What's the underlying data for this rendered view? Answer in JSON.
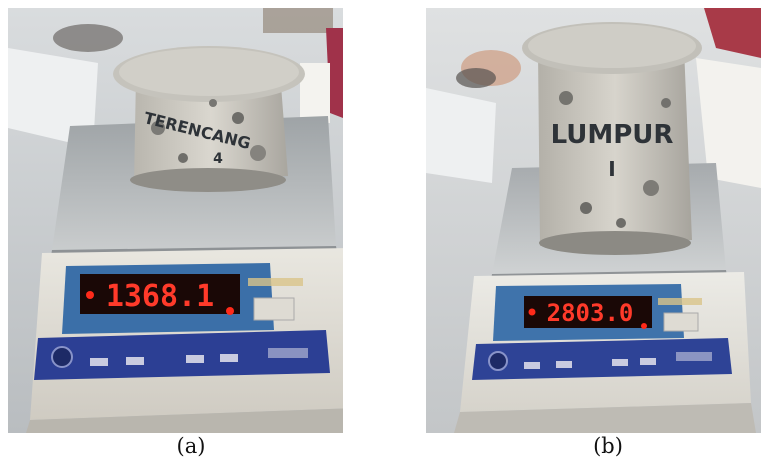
{
  "figure": {
    "panels": [
      {
        "id": "a",
        "caption": "(a)",
        "scale_reading": "1368.1",
        "sample_marking": "TERENCANG",
        "sample_submark": "4"
      },
      {
        "id": "b",
        "caption": "(b)",
        "scale_reading": "2803.0",
        "sample_marking": "LUMPUR",
        "sample_submark": "I"
      }
    ]
  }
}
